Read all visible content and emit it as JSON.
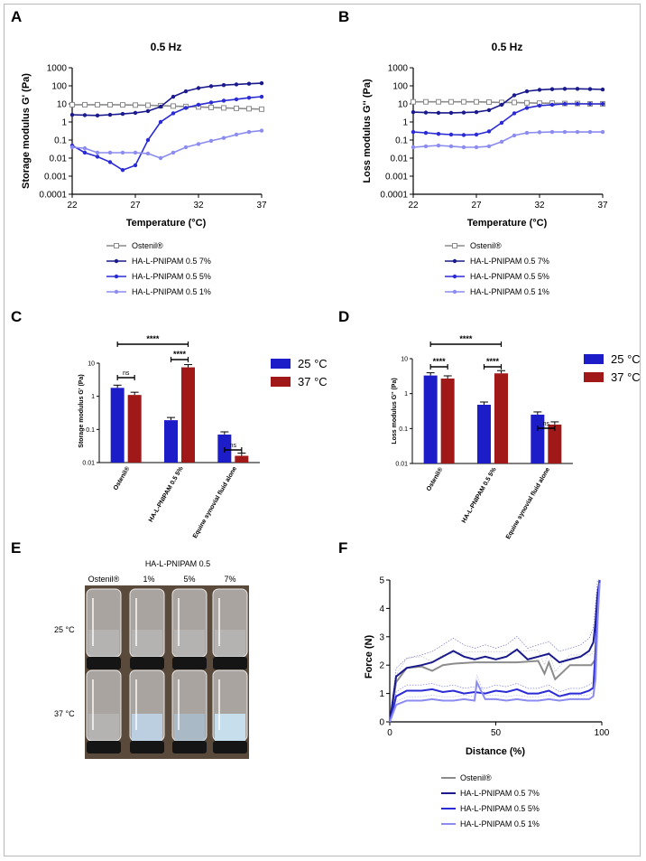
{
  "colors": {
    "ostenil": "#8c8c8c",
    "p7": "#1a1a8c",
    "p5": "#2b2bd6",
    "p1": "#8c8cf0",
    "c25": "#1c1cc8",
    "c37": "#a01818"
  },
  "panels": {
    "A": {
      "label": "A",
      "title": "0.5 Hz",
      "ylabel": "Storage modulus G' (Pa)",
      "xlabel": "Temperature (°C)"
    },
    "B": {
      "label": "B",
      "title": "0.5 Hz",
      "ylabel": "Loss modulus G'' (Pa)",
      "xlabel": "Temperature (°C)"
    },
    "C": {
      "label": "C",
      "ylabel": "Storage modulus G' (Pa)"
    },
    "D": {
      "label": "D",
      "ylabel": "Loss modulus G'' (Pa)"
    },
    "E": {
      "label": "E",
      "title": "HA-L-PNIPAM 0.5",
      "cols": [
        "Ostenil®",
        "1%",
        "5%",
        "7%"
      ],
      "rows": [
        "25 °C",
        "37 °C"
      ]
    },
    "F": {
      "label": "F",
      "ylabel": "Force (N)",
      "xlabel": "Distance (%)"
    }
  },
  "legend_line": [
    "Ostenil®",
    "HA-L-PNIPAM 0.5 7%",
    "HA-L-PNIPAM 0.5 5%",
    "HA-L-PNIPAM 0.5 1%"
  ],
  "legend_bar": [
    "25 °C",
    "37 °C"
  ],
  "chart_data": [
    {
      "panel": "A",
      "type": "line",
      "yscale": "log",
      "xlim": [
        22,
        37
      ],
      "ylim": [
        0.0001,
        1000
      ],
      "xticks": [
        "22",
        "27",
        "32",
        "37"
      ],
      "yticks": [
        "0.0001",
        "0.001",
        "0.01",
        "0.1",
        "1",
        "10",
        "100",
        "1000"
      ],
      "series": [
        {
          "name": "Ostenil®",
          "x": [
            22,
            23,
            24,
            25,
            26,
            27,
            28,
            29,
            30,
            31,
            32,
            33,
            34,
            35,
            36,
            37
          ],
          "y": [
            9,
            9,
            9,
            9,
            8.8,
            8.6,
            8.4,
            8,
            7.6,
            7.2,
            6.8,
            6.4,
            6,
            5.7,
            5.4,
            5.1
          ]
        },
        {
          "name": "HA-L-PNIPAM 0.5 7%",
          "x": [
            22,
            23,
            24,
            25,
            26,
            27,
            28,
            29,
            30,
            31,
            32,
            33,
            34,
            35,
            36,
            37
          ],
          "y": [
            2.5,
            2.4,
            2.3,
            2.5,
            2.8,
            3.2,
            4,
            7,
            25,
            50,
            75,
            95,
            110,
            120,
            130,
            140
          ]
        },
        {
          "name": "HA-L-PNIPAM 0.5 5%",
          "x": [
            22,
            23,
            24,
            25,
            26,
            27,
            28,
            29,
            30,
            31,
            32,
            33,
            34,
            35,
            36,
            37
          ],
          "y": [
            0.05,
            0.02,
            0.012,
            0.006,
            0.0022,
            0.004,
            0.1,
            1,
            3,
            6,
            9,
            12,
            15,
            18,
            22,
            25
          ]
        },
        {
          "name": "HA-L-PNIPAM 0.5 1%",
          "x": [
            22,
            23,
            24,
            25,
            26,
            27,
            28,
            29,
            30,
            31,
            32,
            33,
            34,
            35,
            36,
            37
          ],
          "y": [
            0.04,
            0.035,
            0.02,
            0.02,
            0.02,
            0.02,
            0.018,
            0.01,
            0.02,
            0.04,
            0.06,
            0.09,
            0.13,
            0.2,
            0.28,
            0.33
          ]
        }
      ]
    },
    {
      "panel": "B",
      "type": "line",
      "yscale": "log",
      "xlim": [
        22,
        37
      ],
      "ylim": [
        0.0001,
        1000
      ],
      "xticks": [
        "22",
        "27",
        "32",
        "37"
      ],
      "yticks": [
        "0.0001",
        "0.001",
        "0.01",
        "0.1",
        "1",
        "10",
        "100",
        "1000"
      ],
      "series": [
        {
          "name": "Ostenil®",
          "x": [
            22,
            23,
            24,
            25,
            26,
            27,
            28,
            29,
            30,
            31,
            32,
            33,
            34,
            35,
            36,
            37
          ],
          "y": [
            13,
            13,
            13,
            13,
            13,
            13,
            12.5,
            12,
            12,
            11.5,
            11,
            11,
            10.5,
            10.5,
            10,
            10
          ]
        },
        {
          "name": "HA-L-PNIPAM 0.5 7%",
          "x": [
            22,
            23,
            24,
            25,
            26,
            27,
            28,
            29,
            30,
            31,
            32,
            33,
            34,
            35,
            36,
            37
          ],
          "y": [
            3.5,
            3.3,
            3.2,
            3.2,
            3.3,
            3.5,
            4.5,
            9,
            30,
            50,
            60,
            65,
            68,
            68,
            66,
            63
          ]
        },
        {
          "name": "HA-L-PNIPAM 0.5 5%",
          "x": [
            22,
            23,
            24,
            25,
            26,
            27,
            28,
            29,
            30,
            31,
            32,
            33,
            34,
            35,
            36,
            37
          ],
          "y": [
            0.28,
            0.25,
            0.22,
            0.2,
            0.19,
            0.2,
            0.3,
            0.9,
            3,
            6,
            8,
            9,
            10,
            10,
            10,
            10
          ]
        },
        {
          "name": "HA-L-PNIPAM 0.5 1%",
          "x": [
            22,
            23,
            24,
            25,
            26,
            27,
            28,
            29,
            30,
            31,
            32,
            33,
            34,
            35,
            36,
            37
          ],
          "y": [
            0.04,
            0.045,
            0.05,
            0.045,
            0.04,
            0.04,
            0.045,
            0.08,
            0.18,
            0.25,
            0.27,
            0.28,
            0.28,
            0.28,
            0.28,
            0.28
          ]
        }
      ]
    },
    {
      "panel": "C",
      "type": "bar",
      "yscale": "log",
      "ylim": [
        0.01,
        10
      ],
      "yticks": [
        "0.01",
        "0.1",
        "1",
        "10"
      ],
      "categories": [
        "Ostenil®",
        "HA-L-PNIPAM 0.5 5%",
        "Equine synovial fluid alone"
      ],
      "series": [
        {
          "name": "25 °C",
          "values": [
            1.8,
            0.19,
            0.07
          ]
        },
        {
          "name": "37 °C",
          "values": [
            1.1,
            7.5,
            0.016
          ]
        }
      ],
      "significance": [
        {
          "text": "ns",
          "pair": [
            0,
            0
          ]
        },
        {
          "text": "****",
          "pair": [
            1,
            1
          ]
        },
        {
          "text": "****",
          "pair": [
            0,
            1
          ]
        },
        {
          "text": "ns",
          "pair": [
            2,
            2
          ]
        }
      ]
    },
    {
      "panel": "D",
      "type": "bar",
      "yscale": "log",
      "ylim": [
        0.01,
        10
      ],
      "yticks": [
        "0.01",
        "0.1",
        "1",
        "10"
      ],
      "categories": [
        "Ostenil®",
        "HA-L-PNIPAM 0.5 5%",
        "Equine synovial fluid alone"
      ],
      "series": [
        {
          "name": "25 °C",
          "values": [
            3.3,
            0.48,
            0.25
          ]
        },
        {
          "name": "37 °C",
          "values": [
            2.7,
            3.8,
            0.13
          ]
        }
      ],
      "significance": [
        {
          "text": "****",
          "pair": [
            0,
            0
          ]
        },
        {
          "text": "****",
          "pair": [
            1,
            1
          ]
        },
        {
          "text": "****",
          "pair": [
            0,
            1
          ]
        },
        {
          "text": "ns",
          "pair": [
            2,
            2
          ]
        }
      ]
    },
    {
      "panel": "F",
      "type": "line",
      "xlim": [
        0,
        100
      ],
      "ylim": [
        0,
        5
      ],
      "xticks": [
        "0",
        "50",
        "100"
      ],
      "yticks": [
        "0",
        "1",
        "2",
        "3",
        "4",
        "5"
      ],
      "series": [
        {
          "name": "Ostenil®",
          "x": [
            0,
            3,
            8,
            15,
            20,
            25,
            30,
            40,
            50,
            60,
            70,
            73,
            75,
            78,
            85,
            90,
            93,
            95,
            97,
            98,
            99
          ],
          "y": [
            0,
            1.4,
            1.9,
            1.95,
            1.8,
            2,
            2.05,
            2.1,
            2.1,
            2.1,
            2.15,
            1.7,
            2.1,
            1.5,
            2,
            2,
            2,
            2,
            2.2,
            4,
            4.9
          ]
        },
        {
          "name": "HA-L-PNIPAM 0.5 7%",
          "x": [
            0,
            3,
            8,
            15,
            20,
            25,
            30,
            35,
            40,
            45,
            50,
            55,
            60,
            65,
            70,
            75,
            80,
            85,
            90,
            94,
            96,
            97,
            98,
            99
          ],
          "y": [
            0,
            1.6,
            1.9,
            2,
            2.1,
            2.3,
            2.5,
            2.3,
            2.2,
            2.3,
            2.2,
            2.3,
            2.55,
            2.2,
            2.3,
            2.4,
            2.1,
            2.2,
            2.3,
            2.5,
            2.8,
            3.5,
            4.5,
            5
          ]
        },
        {
          "name": "HA-L-PNIPAM 0.5 5%",
          "x": [
            0,
            3,
            8,
            15,
            20,
            25,
            30,
            35,
            40,
            45,
            50,
            55,
            60,
            65,
            70,
            75,
            80,
            85,
            90,
            94,
            96,
            97,
            98,
            99
          ],
          "y": [
            0,
            0.9,
            1.1,
            1.1,
            1.15,
            1.05,
            1.1,
            1.0,
            1.05,
            1.0,
            1.1,
            1.05,
            1.15,
            1.0,
            1.0,
            1.1,
            0.9,
            1.0,
            1.0,
            1.1,
            1.2,
            2.5,
            4,
            5
          ]
        },
        {
          "name": "HA-L-PNIPAM 0.5 1%",
          "x": [
            0,
            3,
            8,
            15,
            20,
            25,
            30,
            35,
            40,
            41,
            45,
            50,
            55,
            60,
            65,
            70,
            75,
            80,
            85,
            90,
            94,
            96,
            97,
            98,
            99
          ],
          "y": [
            0,
            0.6,
            0.75,
            0.75,
            0.8,
            0.75,
            0.75,
            0.8,
            0.75,
            1.4,
            0.8,
            0.8,
            0.75,
            0.8,
            0.75,
            0.75,
            0.8,
            0.75,
            0.8,
            0.8,
            0.8,
            0.9,
            1.5,
            3.5,
            4.9
          ]
        }
      ]
    }
  ]
}
